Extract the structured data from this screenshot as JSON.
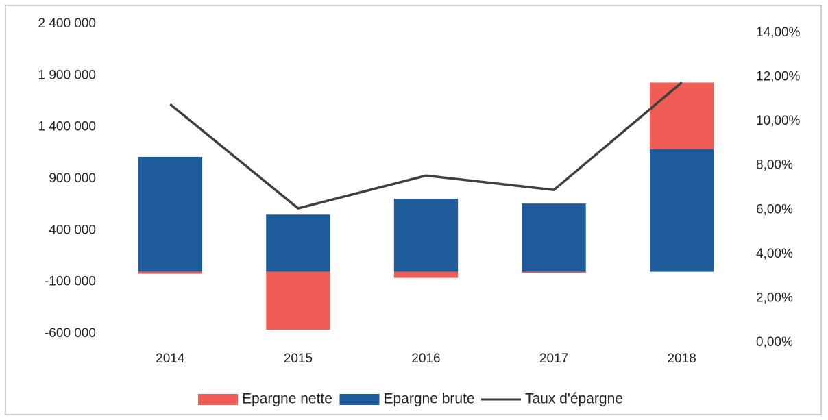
{
  "chart_data": {
    "type": "bar",
    "categories": [
      "2014",
      "2015",
      "2016",
      "2017",
      "2018"
    ],
    "series": [
      {
        "name": "Epargne nette",
        "color": "#ef5b55",
        "values": [
          -20000,
          -560000,
          -60000,
          -10000,
          646000
        ]
      },
      {
        "name": "Epargne brute",
        "color": "#1d5b9a",
        "values": [
          1113000,
          553000,
          707000,
          660000,
          1187000
        ]
      },
      {
        "name": "Taux d'épargne",
        "type": "line",
        "axis": "y2",
        "color": "#3f3f3f",
        "values": [
          10.77,
          6.07,
          7.55,
          6.9,
          11.76
        ]
      }
    ],
    "ylim": [
      -600000,
      2400000
    ],
    "yticks": [
      {
        "value": -600000,
        "label": "-600 000"
      },
      {
        "value": -100000,
        "label": "-100 000"
      },
      {
        "value": 400000,
        "label": "400 000"
      },
      {
        "value": 900000,
        "label": "900 000"
      },
      {
        "value": 1400000,
        "label": "1 400 000"
      },
      {
        "value": 1900000,
        "label": "1 900 000"
      },
      {
        "value": 2400000,
        "label": "2 400 000"
      }
    ],
    "y2lim": [
      0,
      14
    ],
    "y2ticks": [
      {
        "value": 0,
        "label": "0,00%"
      },
      {
        "value": 2,
        "label": "2,00%"
      },
      {
        "value": 4,
        "label": "4,00%"
      },
      {
        "value": 6,
        "label": "6,00%"
      },
      {
        "value": 8,
        "label": "8,00%"
      },
      {
        "value": 10,
        "label": "10,00%"
      },
      {
        "value": 12,
        "label": "12,00%"
      },
      {
        "value": 14,
        "label": "14,00%"
      }
    ],
    "grid": false,
    "legend": "bottom"
  }
}
